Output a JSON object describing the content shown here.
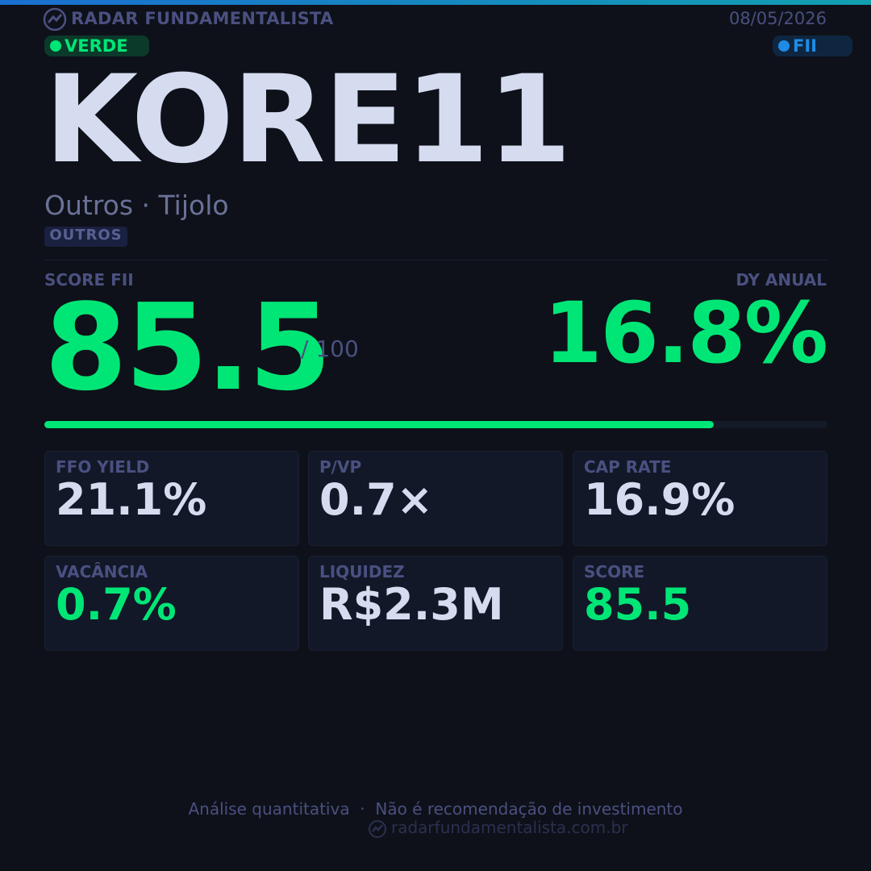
{
  "header": {
    "brand": "RADAR FUNDAMENTALISTA",
    "date": "08/05/2026"
  },
  "badges": {
    "signal": "VERDE",
    "asset_class": "FII"
  },
  "ticker": "KORE11",
  "segment": "Outros · Tijolo",
  "tag": "OUTROS",
  "score": {
    "label": "SCORE FII",
    "value": 85.5,
    "max": {
      "value": 100,
      "label": "/ 100"
    }
  },
  "dividend_yield": {
    "label": "DY ANUAL",
    "value": "16.8%"
  },
  "metrics": [
    {
      "label": "FFO YIELD",
      "value": "21.1%",
      "highlight": false
    },
    {
      "label": "P/VP",
      "value": "0.7×",
      "highlight": false
    },
    {
      "label": "CAP RATE",
      "value": "16.9%",
      "highlight": false
    },
    {
      "label": "VACÂNCIA",
      "value": "0.7%",
      "highlight": true
    },
    {
      "label": "LIQUIDEZ",
      "value": "R$2.3M",
      "highlight": false
    },
    {
      "label": "SCORE",
      "value": "85.5",
      "highlight": true
    }
  ],
  "footer": {
    "disclaimer": "Análise quantitativa  ·  Não é recomendação de investimento",
    "site": "radarfundamentalista.com.br"
  }
}
